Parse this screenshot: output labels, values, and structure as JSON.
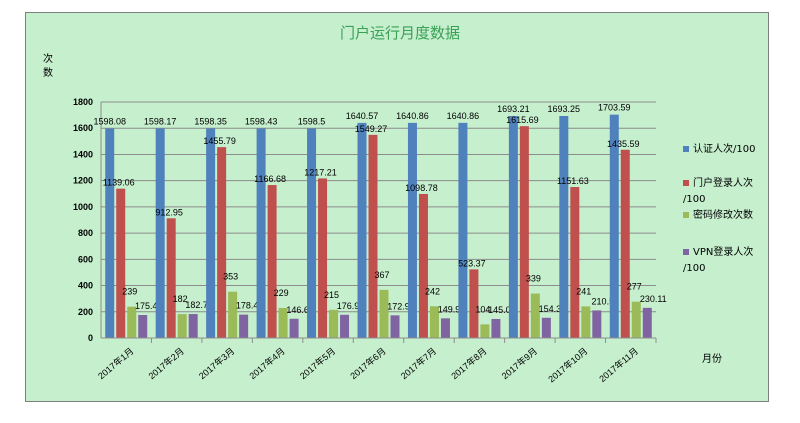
{
  "chart_data": {
    "type": "bar",
    "title": "门户运行月度数据",
    "ylabel": "次数",
    "xlabel": "月份",
    "ylim": [
      0,
      1800
    ],
    "yticks": [
      0,
      200,
      400,
      600,
      800,
      1000,
      1200,
      1400,
      1600,
      1800
    ],
    "grid": true,
    "legend_position": "right",
    "categories": [
      "2017年1月",
      "2017年2月",
      "2017年3月",
      "2017年4月",
      "2017年5月",
      "2017年6月",
      "2017年7月",
      "2017年8月",
      "2017年9月",
      "2017年10月",
      "2017年11月"
    ],
    "series": [
      {
        "name": "认证人次/100",
        "color": "#4f81bd",
        "values": [
          1598.08,
          1598.17,
          1598.35,
          1598.43,
          1598.5,
          1640.57,
          1640.86,
          1640.86,
          1693.21,
          1693.25,
          1703.59
        ]
      },
      {
        "name": "门户登录人次/100",
        "color": "#c0504d",
        "values": [
          1139.06,
          912.95,
          1455.79,
          1166.68,
          1217.21,
          1549.27,
          1098.78,
          523.37,
          1615.69,
          1151.63,
          1435.59
        ]
      },
      {
        "name": "密码修改次数",
        "color": "#9bbb59",
        "values": [
          239,
          182,
          353,
          229,
          215,
          367,
          242,
          104,
          339,
          241,
          277
        ]
      },
      {
        "name": "VPN登录人次/100",
        "color": "#8064a2",
        "values": [
          175.41,
          182.78,
          178.42,
          146.63,
          176.95,
          172.94,
          149.93,
          145.07,
          154.34,
          210.5,
          230.11
        ]
      }
    ]
  }
}
